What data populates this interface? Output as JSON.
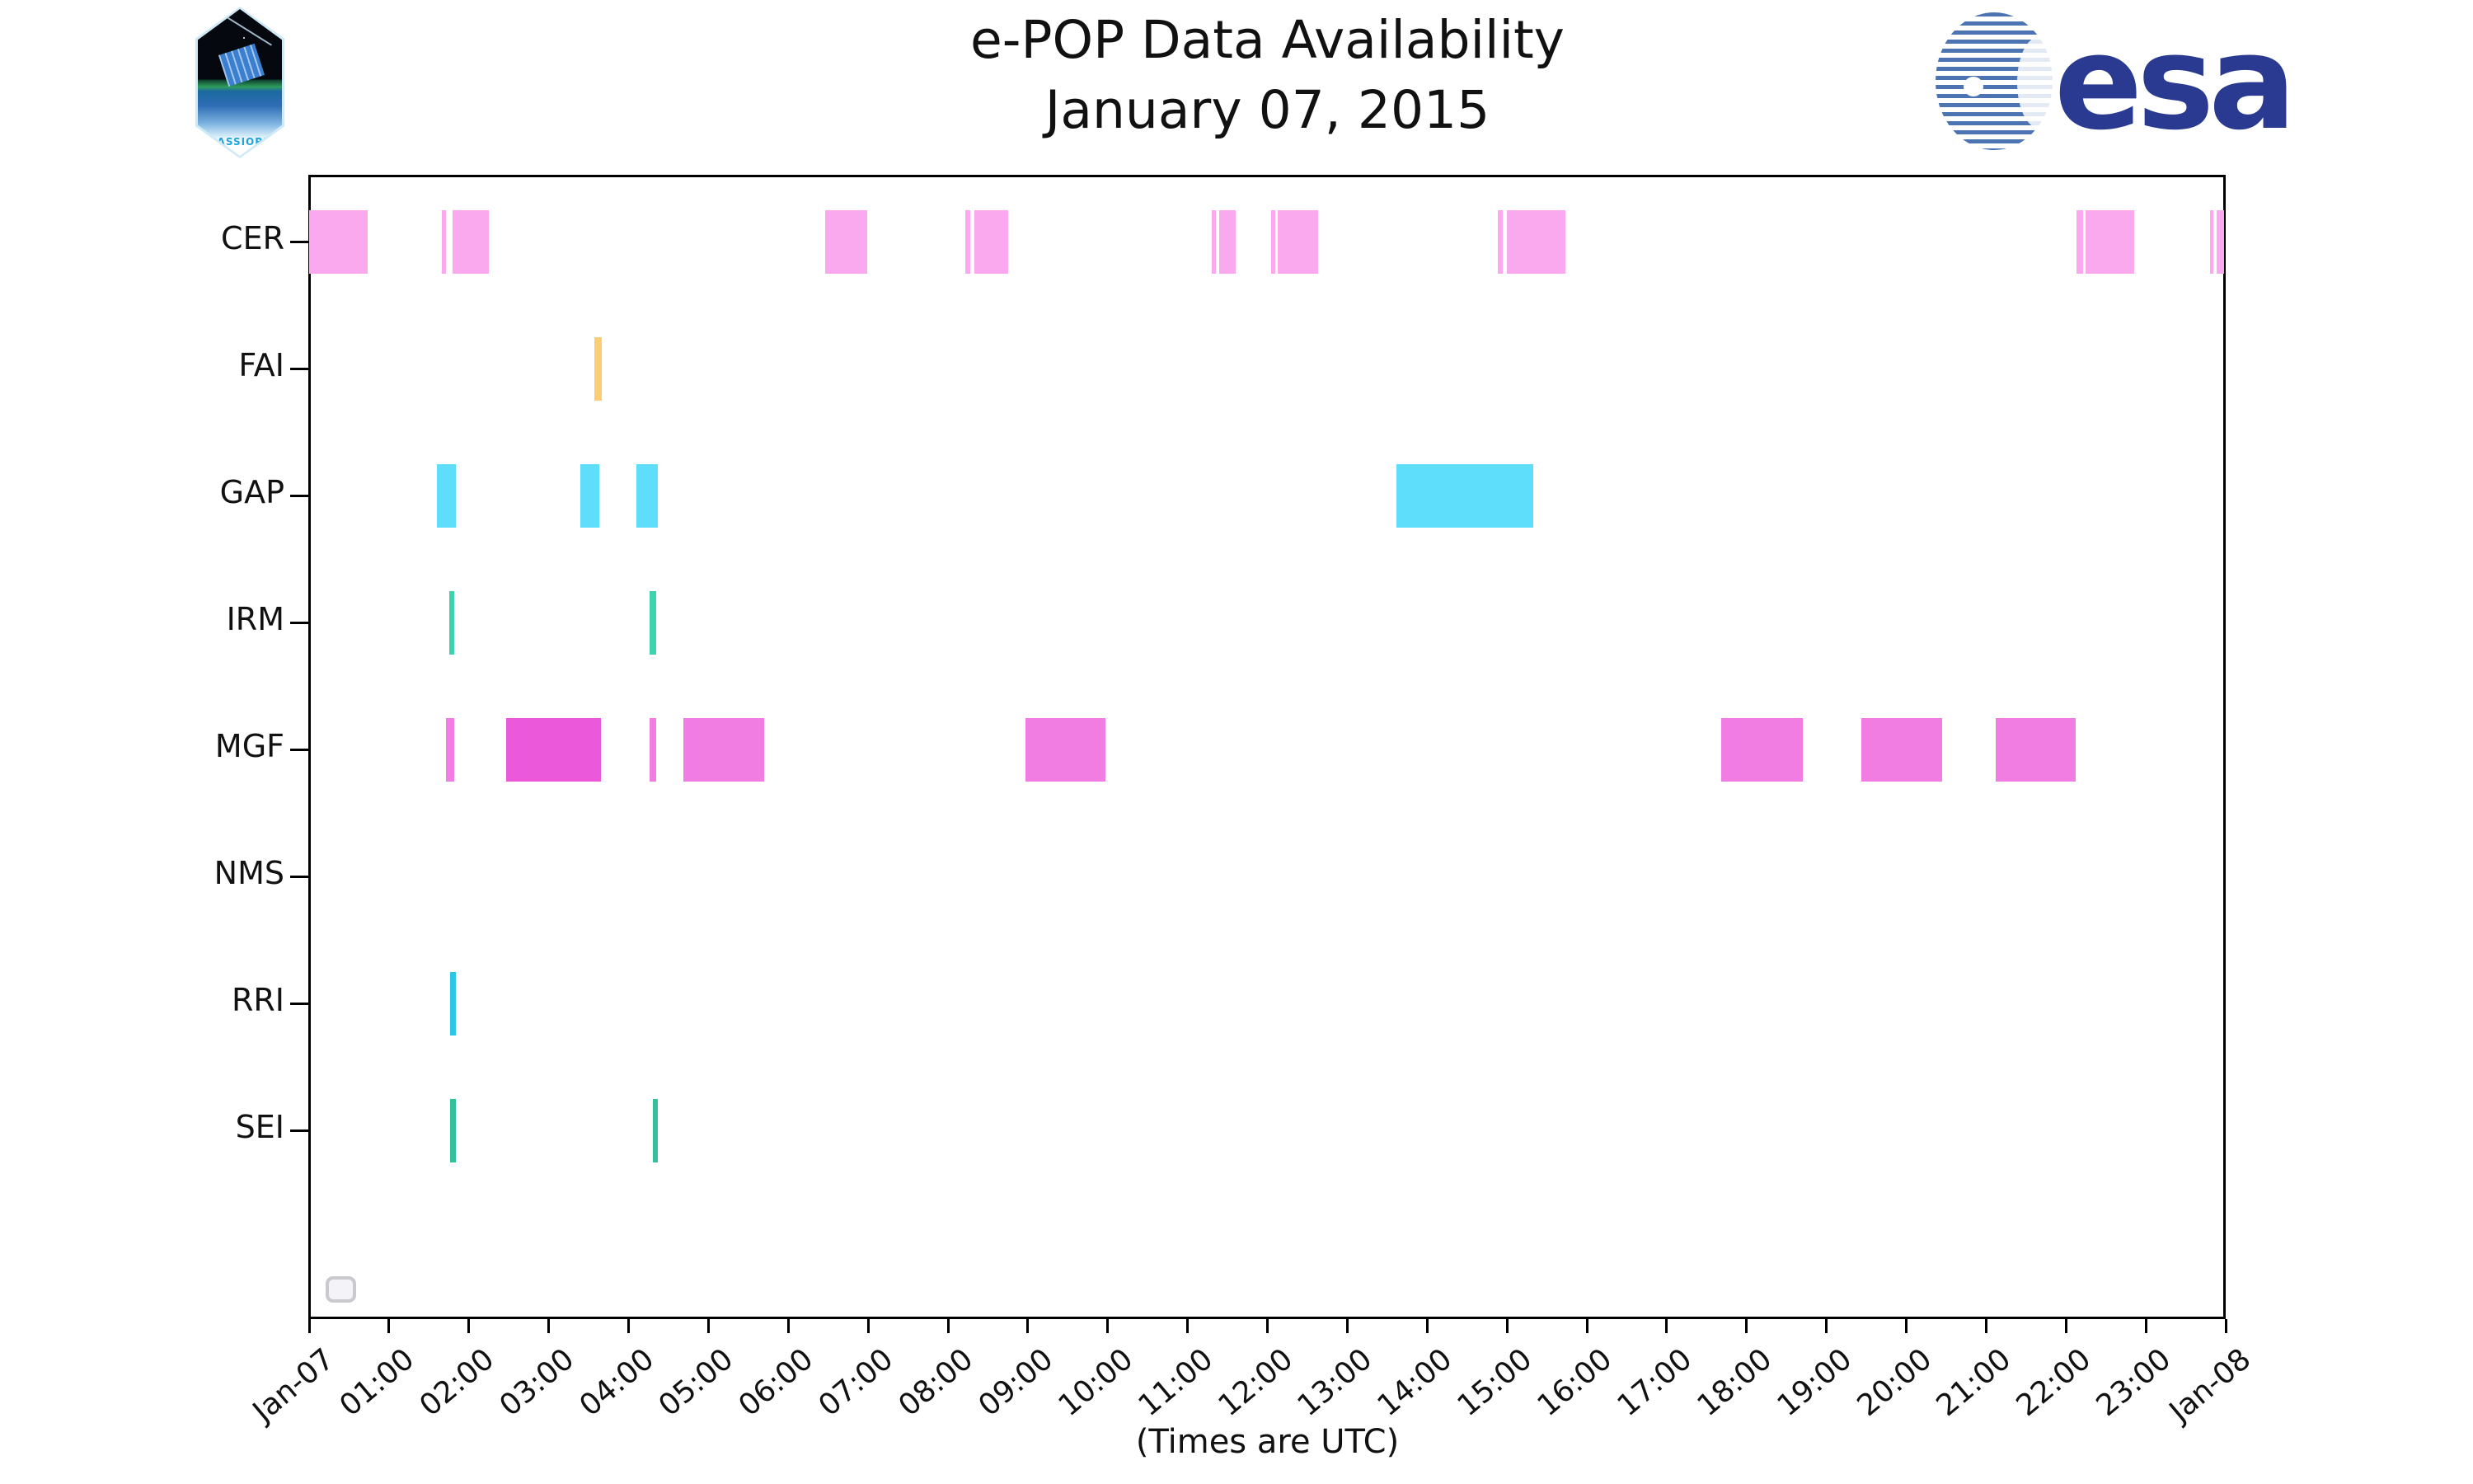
{
  "logos": {
    "cassiope_text": "CASSIOPE",
    "esa_text": "esa",
    "esa_blue": "#293a90",
    "esa_stripe_blue": "#4c73b2",
    "cassiope_cyan": "#1ba4dd"
  },
  "chart_data": {
    "type": "bar",
    "variant": "broken-bar availability timeline",
    "title": "e-POP Data Availability",
    "subtitle": "January 07, 2015",
    "xlabel": "(Times are UTC)",
    "grid": "off",
    "legend": "empty-box bottom-left",
    "x_axis": {
      "start": "Jan-07 00:00",
      "end": "Jan-08 00:00",
      "hours_span": 24,
      "tick_labels": [
        "Jan-07",
        "01:00",
        "02:00",
        "03:00",
        "04:00",
        "05:00",
        "06:00",
        "07:00",
        "08:00",
        "09:00",
        "10:00",
        "11:00",
        "12:00",
        "13:00",
        "14:00",
        "15:00",
        "16:00",
        "17:00",
        "18:00",
        "19:00",
        "20:00",
        "21:00",
        "22:00",
        "23:00",
        "Jan-08"
      ]
    },
    "rows": [
      {
        "instrument": "CER",
        "color": "#faa9ee",
        "intervals": [
          [
            "00:00",
            "00:44"
          ],
          [
            "01:40",
            "01:43"
          ],
          [
            "01:48",
            "02:15"
          ],
          [
            "06:28",
            "06:59"
          ],
          [
            "08:13",
            "08:17"
          ],
          [
            "08:20",
            "08:45"
          ],
          [
            "11:18",
            "11:21"
          ],
          [
            "11:24",
            "11:36"
          ],
          [
            "12:03",
            "12:06"
          ],
          [
            "12:08",
            "12:38"
          ],
          [
            "14:53",
            "14:57"
          ],
          [
            "15:00",
            "15:44"
          ],
          [
            "22:08",
            "22:13"
          ],
          [
            "22:15",
            "22:51"
          ],
          [
            "23:48",
            "23:50"
          ],
          [
            "23:53",
            "23:59"
          ]
        ]
      },
      {
        "instrument": "FAI",
        "color": "#fbcd74",
        "intervals": [
          [
            "03:34",
            "03:40"
          ]
        ]
      },
      {
        "instrument": "GAP",
        "color": "#5edefa",
        "intervals": [
          [
            "01:36",
            "01:50"
          ],
          [
            "03:24",
            "03:38"
          ],
          [
            "04:06",
            "04:22"
          ],
          [
            "13:37",
            "15:20"
          ]
        ]
      },
      {
        "instrument": "IRM",
        "color": "#3ed3ae",
        "intervals": [
          [
            "01:45",
            "01:49"
          ],
          [
            "04:16",
            "04:21"
          ]
        ]
      },
      {
        "instrument": "MGF",
        "color": "#f17de2",
        "intervals": [
          [
            "01:43",
            "01:49"
          ],
          [
            "02:28",
            "03:39",
            "#eb58d9"
          ],
          [
            "04:16",
            "04:21"
          ],
          [
            "04:41",
            "05:42"
          ],
          [
            "08:58",
            "09:58"
          ],
          [
            "17:41",
            "18:42"
          ],
          [
            "19:26",
            "20:27"
          ],
          [
            "21:07",
            "22:07"
          ]
        ]
      },
      {
        "instrument": "NMS",
        "color": "#cccccc",
        "intervals": []
      },
      {
        "instrument": "RRI",
        "color": "#2cc6e6",
        "intervals": [
          [
            "01:46",
            "01:50"
          ]
        ]
      },
      {
        "instrument": "SEI",
        "color": "#35c09c",
        "intervals": [
          [
            "01:46",
            "01:50"
          ],
          [
            "04:18",
            "04:22"
          ]
        ]
      }
    ]
  }
}
